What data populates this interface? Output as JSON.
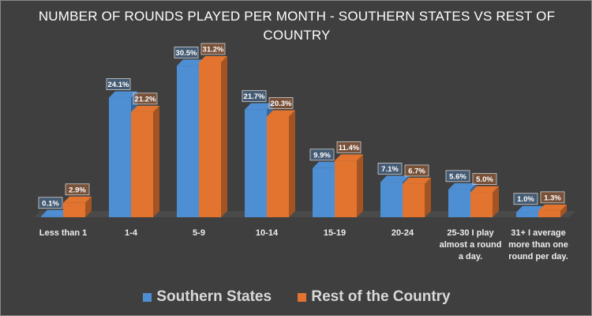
{
  "chart_data": {
    "type": "bar",
    "title": "NUMBER OF ROUNDS PLAYED PER MONTH - SOUTHERN STATES VS REST OF COUNTRY",
    "categories": [
      "Less than 1",
      "1-4",
      "5-9",
      "10-14",
      "15-19",
      "20-24",
      "25-30 I play almost a round a day.",
      "31+ I average more than one round per day."
    ],
    "series": [
      {
        "name": "Southern States",
        "color": "#4e8fd4",
        "values": [
          0.1,
          24.1,
          30.5,
          21.7,
          9.9,
          7.1,
          5.6,
          1.0
        ],
        "labels": [
          "0.1%",
          "24.1%",
          "30.5%",
          "21.7%",
          "9.9%",
          "7.1%",
          "5.6%",
          "1.0%"
        ]
      },
      {
        "name": "Rest of the Country",
        "color": "#e2742f",
        "values": [
          2.9,
          21.2,
          31.2,
          20.3,
          11.4,
          6.7,
          5.0,
          1.3
        ],
        "labels": [
          "2.9%",
          "21.2%",
          "31.2%",
          "20.3%",
          "11.4%",
          "6.7%",
          "5.0%",
          "1.3%"
        ]
      }
    ],
    "ylim": [
      0,
      31.2
    ],
    "grid": false,
    "legend_position": "bottom"
  }
}
